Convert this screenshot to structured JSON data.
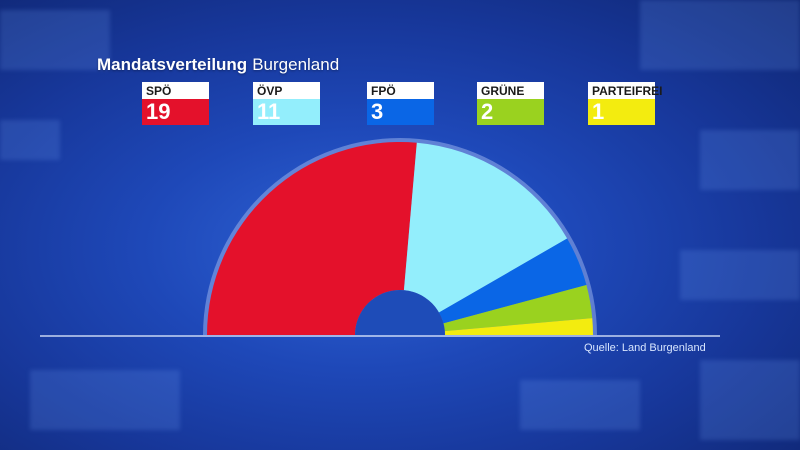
{
  "title": {
    "bold": "Mandatsverteilung",
    "light": "Burgenland"
  },
  "source": "Quelle: Land Burgenland",
  "chart_data": {
    "type": "pie",
    "variant": "semicircle",
    "title": "Mandatsverteilung Burgenland",
    "categories": [
      "SPÖ",
      "ÖVP",
      "FPÖ",
      "GRÜNE",
      "PARTEIFREI"
    ],
    "values": [
      19,
      11,
      3,
      2,
      1
    ],
    "colors": [
      "#e4112b",
      "#93eefc",
      "#0a66e6",
      "#9ad21f",
      "#f3ec0f"
    ],
    "legend_position": "top"
  }
}
